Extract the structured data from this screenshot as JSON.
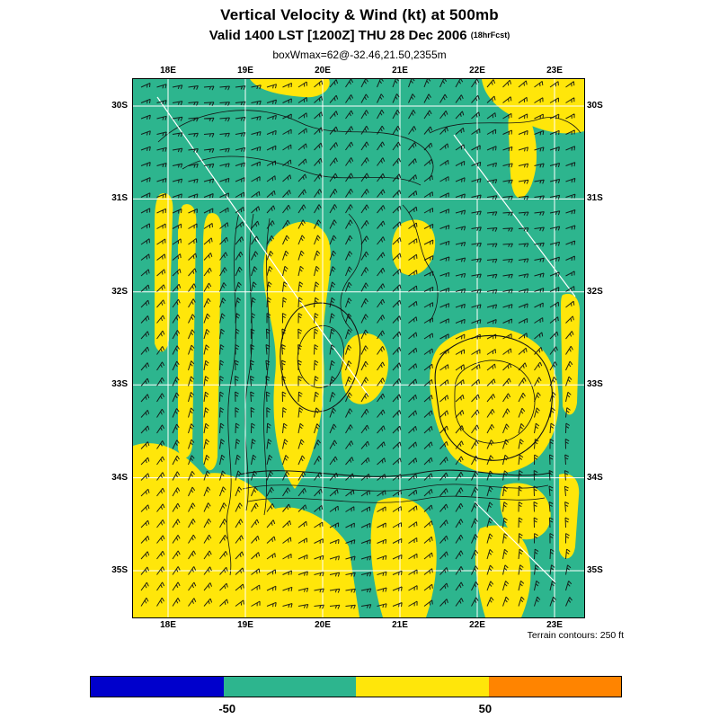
{
  "chart_data": {
    "type": "heatmap",
    "field": "Vertical velocity shading with wind barbs at 500mb",
    "title": "Vertical Velocity & Wind (kt) at 500mb",
    "subtitle": "Valid 1400 LST [1200Z] THU 28 Dec 2006",
    "forecast_tag": "(18hrFcst)",
    "annotation": "boxWmax=62@-32.46,21.50,2355m",
    "x_ticks": [
      "18E",
      "19E",
      "20E",
      "21E",
      "22E",
      "23E"
    ],
    "y_ticks": [
      "30S",
      "31S",
      "32S",
      "33S",
      "34S",
      "35S"
    ],
    "footnote": "Terrain contours: 250 ft",
    "colors": {
      "map_green": "#2db58e",
      "map_yellow": "#ffe60a"
    },
    "colorbar": {
      "segments": [
        "#0000cc",
        "#2db58e",
        "#ffe60a",
        "#ff8400"
      ],
      "tick_labels": [
        "-50",
        "50"
      ],
      "tick_positions": [
        0.258,
        0.743
      ]
    }
  }
}
